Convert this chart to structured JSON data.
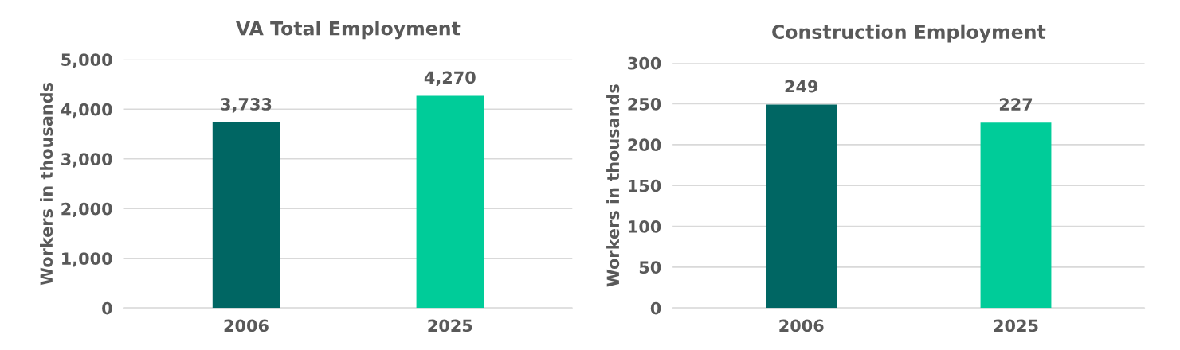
{
  "chart_data": [
    {
      "type": "bar",
      "title": "VA Total Employment",
      "ylabel": "Workers in thousands",
      "categories": [
        "2006",
        "2025"
      ],
      "values": [
        3733,
        4270
      ],
      "colors": [
        "#006663",
        "#00cc99"
      ],
      "ylim": [
        0,
        5000
      ],
      "yticks": [
        {
          "value": 0,
          "label": "0"
        },
        {
          "value": 1000,
          "label": "1,000"
        },
        {
          "value": 2000,
          "label": "2,000"
        },
        {
          "value": 3000,
          "label": "3,000"
        },
        {
          "value": 4000,
          "label": "4,000"
        },
        {
          "value": 5000,
          "label": "5,000"
        }
      ],
      "value_labels": [
        "3,733",
        "4,270"
      ],
      "grid": "y",
      "legend": false
    },
    {
      "type": "bar",
      "title": "Construction Employment",
      "ylabel": "Workers in thousands",
      "categories": [
        "2006",
        "2025"
      ],
      "values": [
        249,
        227
      ],
      "colors": [
        "#006663",
        "#00cc99"
      ],
      "ylim": [
        0,
        300
      ],
      "yticks": [
        0,
        50,
        100,
        150,
        200,
        250,
        300
      ],
      "data_labels": true,
      "grid": "y",
      "legend": false
    }
  ]
}
